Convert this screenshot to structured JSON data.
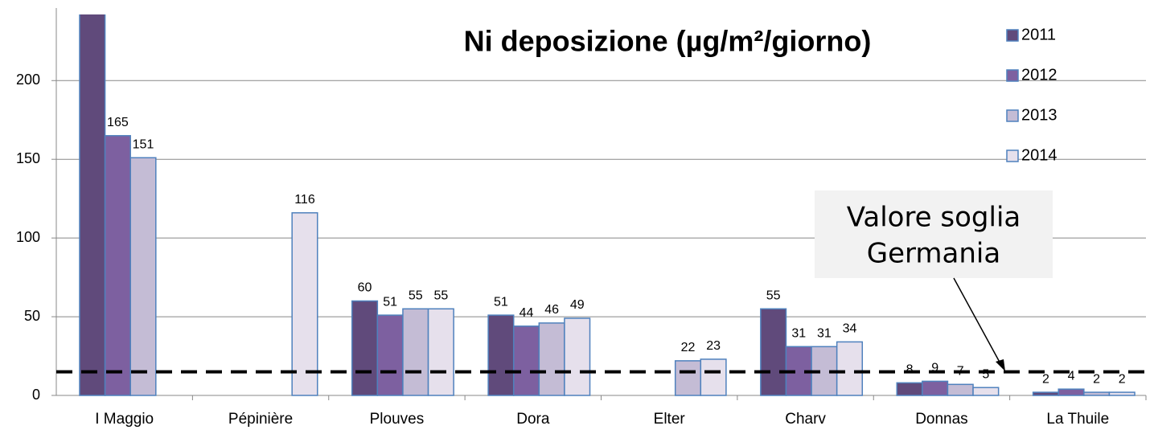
{
  "chart_data": {
    "type": "bar",
    "title": "Ni deposizione (µg/m²/giorno)",
    "categories": [
      "I Maggio",
      "Pépinière",
      "Plouves",
      "Dora",
      "Elter",
      "Charv",
      "Donnas",
      "La Thuile"
    ],
    "series": [
      {
        "name": "2011",
        "color": "#604a7b",
        "values": [
          245,
          null,
          60,
          51,
          null,
          55,
          8,
          2
        ]
      },
      {
        "name": "2012",
        "color": "#7d60a0",
        "values": [
          165,
          null,
          51,
          44,
          null,
          31,
          9,
          4
        ]
      },
      {
        "name": "2013",
        "color": "#c4bcd5",
        "values": [
          151,
          null,
          55,
          46,
          22,
          31,
          7,
          2
        ]
      },
      {
        "name": "2014",
        "color": "#e6e0ec",
        "values": [
          null,
          116,
          55,
          49,
          23,
          34,
          5,
          2
        ]
      }
    ],
    "ylim": [
      0,
      242
    ],
    "yticks": [
      0,
      50,
      100,
      150,
      200
    ],
    "grid": true,
    "threshold": 15,
    "annotation": [
      "Valore soglia",
      "Germania"
    ],
    "legend": "right"
  }
}
